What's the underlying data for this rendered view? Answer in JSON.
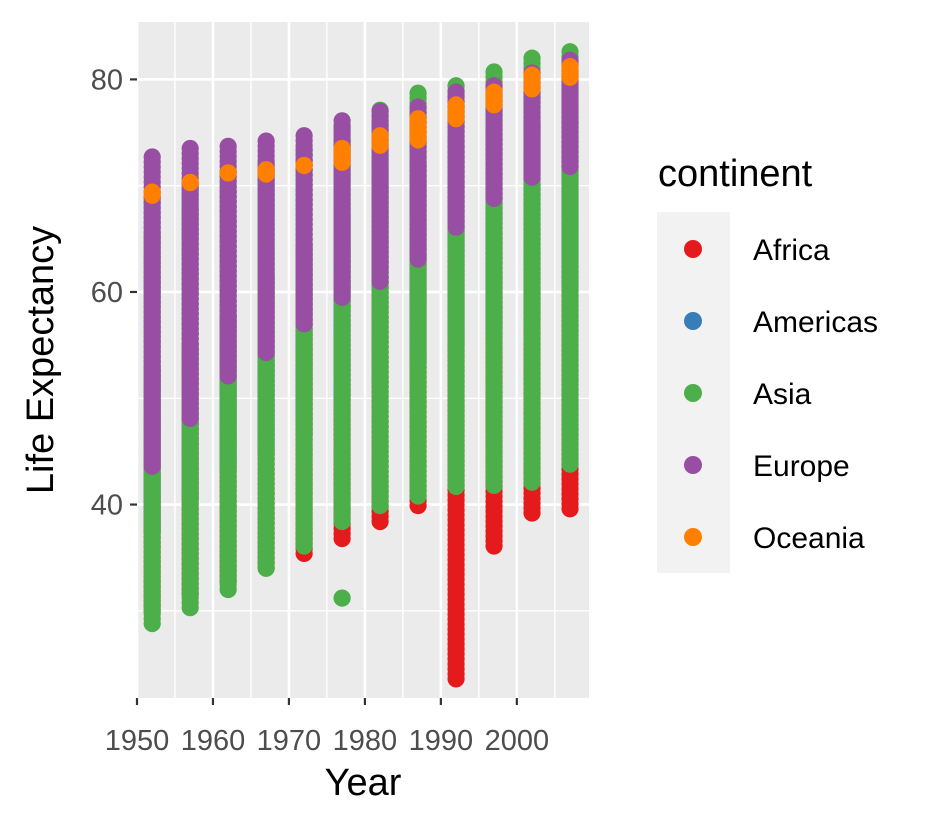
{
  "chart_data": {
    "type": "scatter",
    "xlabel": "Year",
    "ylabel": "Life Expectancy",
    "xlim": [
      1950,
      2009.5
    ],
    "ylim": [
      21.8,
      85.4
    ],
    "x_ticks": [
      1950,
      1960,
      1970,
      1980,
      1990,
      2000
    ],
    "x_tick_labels": [
      "1950",
      "1960",
      "1970",
      "1980",
      "1990",
      "2000"
    ],
    "y_ticks": [
      40,
      60,
      80
    ],
    "y_tick_labels": [
      "40",
      "60",
      "80"
    ],
    "grid": true,
    "legend": {
      "title": "continent",
      "placement": "right"
    },
    "x": [
      1952,
      1957,
      1962,
      1967,
      1972,
      1977,
      1982,
      1987,
      1992,
      1997,
      2002,
      2007
    ],
    "series": [
      {
        "name": "Africa",
        "color": "#E41A1C",
        "ranges": [
          [
            30.0,
            52.7
          ],
          [
            31.6,
            55.0
          ],
          [
            32.8,
            57.6
          ],
          [
            34.1,
            61.4
          ],
          [
            35.4,
            64.3
          ],
          [
            36.8,
            67.1
          ],
          [
            38.4,
            69.9
          ],
          [
            39.9,
            71.9
          ],
          [
            23.6,
            73.6
          ],
          [
            36.1,
            74.8
          ],
          [
            39.2,
            75.7
          ],
          [
            39.6,
            76.4
          ]
        ],
        "extra_points": []
      },
      {
        "name": "Americas",
        "color": "#377EB8",
        "ranges": [
          [
            37.6,
            68.8
          ],
          [
            40.7,
            70.0
          ],
          [
            43.4,
            71.3
          ],
          [
            45.0,
            72.1
          ],
          [
            46.7,
            72.9
          ],
          [
            49.9,
            74.2
          ],
          [
            51.5,
            75.8
          ],
          [
            53.6,
            76.9
          ],
          [
            55.1,
            77.9
          ],
          [
            56.7,
            78.6
          ],
          [
            58.1,
            79.8
          ],
          [
            60.9,
            80.7
          ]
        ],
        "extra_points": []
      },
      {
        "name": "Asia",
        "color": "#4DAF4A",
        "ranges": [
          [
            28.8,
            65.4
          ],
          [
            30.3,
            67.8
          ],
          [
            32.0,
            69.4
          ],
          [
            34.0,
            71.4
          ],
          [
            36.1,
            73.4
          ],
          [
            38.4,
            75.4
          ],
          [
            39.9,
            77.1
          ],
          [
            40.8,
            78.7
          ],
          [
            41.7,
            79.4
          ],
          [
            41.8,
            80.7
          ],
          [
            42.1,
            82.0
          ],
          [
            43.8,
            82.6
          ]
        ],
        "extra_points": [
          [
            1977,
            31.2
          ]
        ]
      },
      {
        "name": "Europe",
        "color": "#984EA3",
        "ranges": [
          [
            43.6,
            72.7
          ],
          [
            48.1,
            73.5
          ],
          [
            52.1,
            73.7
          ],
          [
            54.3,
            74.2
          ],
          [
            57.0,
            74.7
          ],
          [
            59.5,
            76.1
          ],
          [
            61.0,
            76.99
          ],
          [
            63.1,
            77.4
          ],
          [
            66.1,
            78.8
          ],
          [
            68.8,
            79.4
          ],
          [
            70.8,
            80.6
          ],
          [
            71.8,
            81.8
          ]
        ],
        "extra_points": []
      },
      {
        "name": "Oceania",
        "color": "#FF7F00",
        "ranges": [
          [
            69.1,
            69.4
          ],
          [
            70.3,
            70.3
          ],
          [
            71.2,
            71.2
          ],
          [
            71.1,
            71.5
          ],
          [
            71.9,
            71.9
          ],
          [
            72.2,
            73.5
          ],
          [
            73.8,
            74.7
          ],
          [
            74.3,
            76.3
          ],
          [
            76.3,
            77.6
          ],
          [
            77.6,
            78.8
          ],
          [
            79.1,
            80.4
          ],
          [
            80.2,
            81.2
          ]
        ],
        "extra_points": []
      }
    ]
  }
}
